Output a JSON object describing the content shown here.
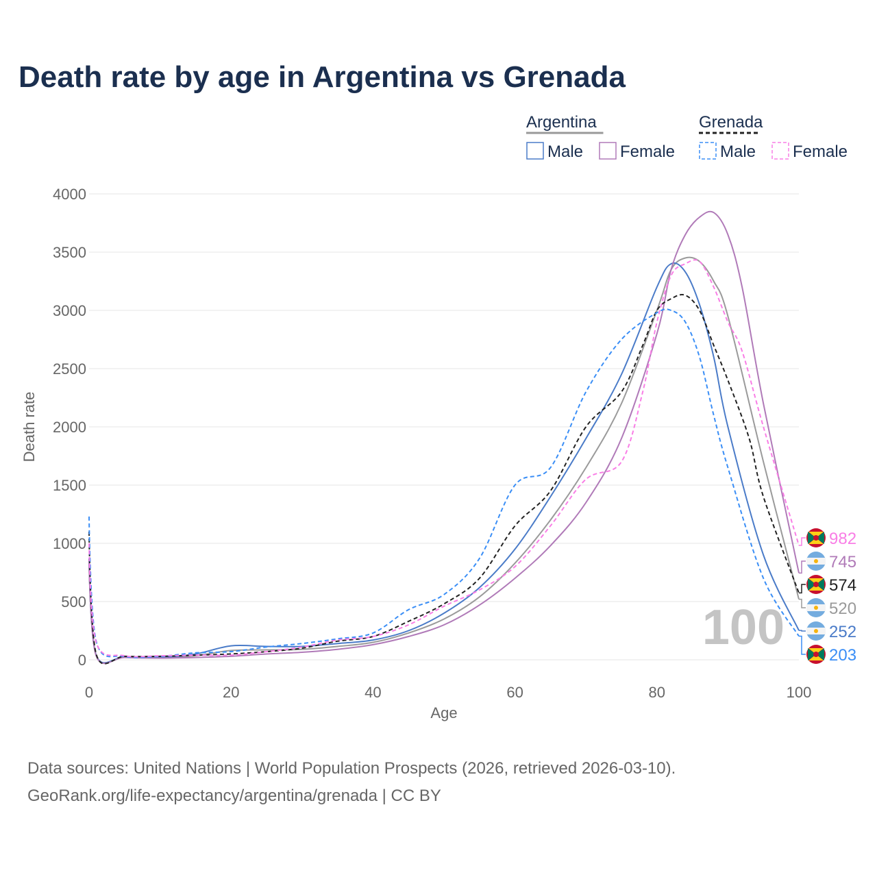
{
  "title": "Death rate by age in Argentina vs Grenada",
  "footer": {
    "line1": "Data sources: United Nations | World Population Prospects (2026, retrieved 2026-03-10).",
    "line2": "GeoRank.org/life-expectancy/argentina/grenada | CC BY"
  },
  "chart_data": {
    "type": "line",
    "title": "Death rate by age in Argentina vs Grenada",
    "xlabel": "Age",
    "ylabel": "Death rate",
    "xlim": [
      0,
      100
    ],
    "ylim": [
      0,
      4000
    ],
    "xticks": [
      0,
      20,
      40,
      60,
      80,
      100
    ],
    "yticks": [
      0,
      500,
      1000,
      1500,
      2000,
      2500,
      3000,
      3500,
      4000
    ],
    "watermark": "100",
    "legend": {
      "groups": [
        {
          "name": "Argentina",
          "style": "solid",
          "items": [
            "Male",
            "Female"
          ]
        },
        {
          "name": "Grenada",
          "style": "dashed",
          "items": [
            "Male",
            "Female"
          ]
        }
      ],
      "placement": "top-right"
    },
    "series": [
      {
        "name": "Argentina Total",
        "country": "Argentina",
        "flag": "argentina",
        "color": "#9a9a9a",
        "dash": false,
        "end_label": "520",
        "x": [
          0,
          1,
          5,
          10,
          15,
          20,
          25,
          30,
          35,
          40,
          45,
          50,
          55,
          60,
          65,
          70,
          75,
          80,
          82,
          84,
          86,
          88,
          90,
          95,
          100
        ],
        "y": [
          860,
          40,
          22,
          18,
          35,
          80,
          85,
          90,
          115,
          150,
          230,
          350,
          540,
          830,
          1200,
          1650,
          2200,
          3000,
          3350,
          3450,
          3420,
          3250,
          2950,
          1700,
          520
        ]
      },
      {
        "name": "Argentina Male",
        "country": "Argentina",
        "flag": "argentina",
        "color": "#4a7bc8",
        "dash": false,
        "end_label": "252",
        "x": [
          0,
          1,
          5,
          10,
          15,
          20,
          25,
          30,
          35,
          40,
          45,
          50,
          55,
          60,
          65,
          70,
          75,
          80,
          82,
          84,
          86,
          88,
          90,
          95,
          100
        ],
        "y": [
          870,
          40,
          25,
          20,
          50,
          120,
          115,
          115,
          140,
          170,
          250,
          400,
          620,
          950,
          1400,
          1900,
          2450,
          3200,
          3400,
          3330,
          3050,
          2600,
          2000,
          900,
          252
        ]
      },
      {
        "name": "Argentina Female",
        "country": "Argentina",
        "flag": "argentina",
        "color": "#b07ab8",
        "dash": false,
        "end_label": "745",
        "x": [
          0,
          1,
          5,
          10,
          15,
          20,
          25,
          30,
          35,
          40,
          45,
          50,
          55,
          60,
          65,
          70,
          75,
          80,
          82,
          84,
          86,
          88,
          90,
          92,
          95,
          100
        ],
        "y": [
          860,
          35,
          20,
          15,
          20,
          30,
          50,
          65,
          90,
          130,
          200,
          300,
          470,
          700,
          980,
          1350,
          1900,
          2800,
          3350,
          3650,
          3800,
          3840,
          3650,
          3200,
          2200,
          745
        ]
      },
      {
        "name": "Grenada Total",
        "country": "Grenada",
        "flag": "grenada",
        "color": "#222222",
        "dash": true,
        "end_label": "574",
        "x": [
          0,
          1,
          5,
          10,
          15,
          20,
          25,
          30,
          35,
          40,
          45,
          50,
          55,
          60,
          65,
          70,
          75,
          78,
          80,
          82,
          84,
          86,
          88,
          90,
          93,
          95,
          100
        ],
        "y": [
          1100,
          50,
          30,
          30,
          40,
          50,
          70,
          100,
          160,
          200,
          330,
          480,
          700,
          1150,
          1450,
          2000,
          2300,
          2700,
          3000,
          3100,
          3130,
          3000,
          2700,
          2400,
          1900,
          1400,
          574
        ]
      },
      {
        "name": "Grenada Male",
        "country": "Grenada",
        "flag": "grenada",
        "color": "#3a8ef6",
        "dash": true,
        "end_label": "203",
        "x": [
          0,
          1,
          5,
          10,
          15,
          20,
          25,
          30,
          35,
          40,
          45,
          50,
          55,
          60,
          65,
          70,
          75,
          80,
          82,
          84,
          86,
          88,
          90,
          95,
          100
        ],
        "y": [
          1230,
          160,
          30,
          30,
          60,
          70,
          110,
          140,
          180,
          230,
          430,
          560,
          870,
          1500,
          1650,
          2300,
          2750,
          2980,
          3000,
          2900,
          2600,
          2100,
          1650,
          700,
          203
        ]
      },
      {
        "name": "Grenada Female",
        "country": "Grenada",
        "flag": "grenada",
        "color": "#f97ee6",
        "dash": true,
        "end_label": "982",
        "x": [
          0,
          1,
          5,
          10,
          15,
          20,
          25,
          30,
          35,
          40,
          45,
          50,
          55,
          60,
          65,
          70,
          75,
          78,
          80,
          82,
          84,
          86,
          88,
          90,
          92,
          95,
          100
        ],
        "y": [
          1000,
          150,
          35,
          35,
          40,
          40,
          70,
          110,
          170,
          200,
          300,
          460,
          600,
          800,
          1150,
          1550,
          1700,
          2300,
          2900,
          3300,
          3400,
          3420,
          3200,
          2900,
          2650,
          2000,
          982
        ]
      }
    ]
  }
}
